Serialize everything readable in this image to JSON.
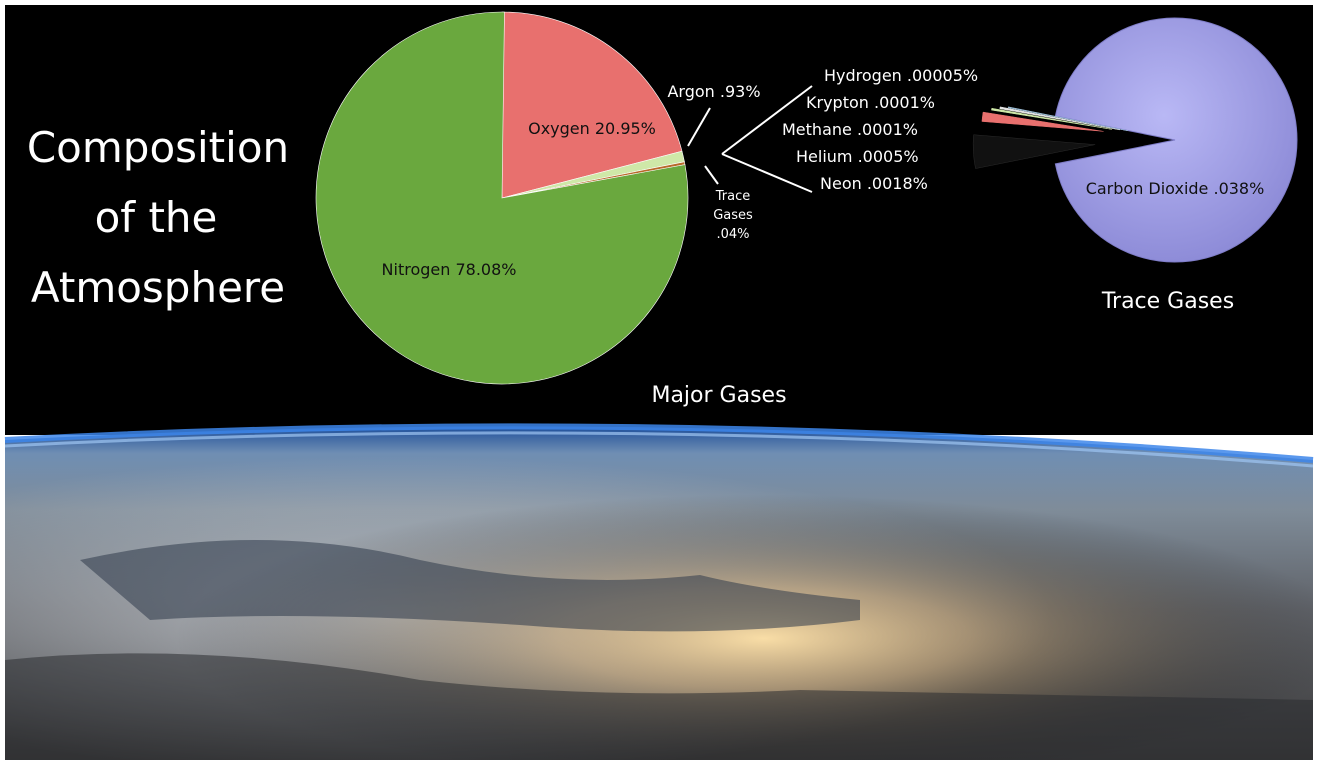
{
  "chart_data": [
    {
      "type": "pie",
      "title": "Major Gases",
      "slices": [
        {
          "label": "Nitrogen 78.08%",
          "name": "Nitrogen",
          "value": 78.08,
          "color": "#6aa83e"
        },
        {
          "label": "Oxygen 20.95%",
          "name": "Oxygen",
          "value": 20.95,
          "color": "#e8706e"
        },
        {
          "label": "Argon .93%",
          "name": "Argon",
          "value": 0.93,
          "color": "#cfe8a8"
        },
        {
          "label": "Trace Gases .04%",
          "name": "Trace Gases",
          "value": 0.04,
          "color": "#b86a2a"
        }
      ]
    },
    {
      "type": "pie",
      "title": "Trace Gases",
      "slices": [
        {
          "label": "Carbon Dioxide .038%",
          "name": "Carbon Dioxide",
          "value": 0.038,
          "color": "#a9a8ee"
        },
        {
          "label": "Neon .0018%",
          "name": "Neon",
          "value": 0.0018,
          "color": "#111111"
        },
        {
          "label": "Helium .0005%",
          "name": "Helium",
          "value": 0.0005,
          "color": "#e8706e"
        },
        {
          "label": "Methane .0001%",
          "name": "Methane",
          "value": 0.0001,
          "color": "#cfe8a8"
        },
        {
          "label": "Krypton .0001%",
          "name": "Krypton",
          "value": 0.0001,
          "color": "#e6e6e6"
        },
        {
          "label": "Hydrogen .00005%",
          "name": "Hydrogen",
          "value": 5e-05,
          "color": "#9ec0d8"
        }
      ]
    }
  ],
  "heading": {
    "line1": "Composition",
    "line2": "of the",
    "line3": "Atmosphere"
  },
  "trace_note": {
    "line1": "Trace",
    "line2": "Gases",
    "line3": ".04%"
  },
  "colors": {
    "space": "#000000",
    "atmosphere_glow": "#2a6fd0"
  }
}
